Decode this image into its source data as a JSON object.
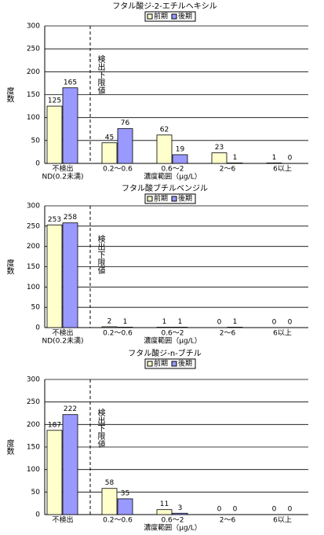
{
  "chart_data": [
    {
      "type": "bar",
      "title": "フタル酸ジ-2-エチルヘキシル",
      "ylabel": "度数",
      "xlabel": "濃度範囲（μg/L）",
      "annotation": "検出下限値",
      "categories": [
        "不検出",
        "0.2～0.6",
        "0.6～2",
        "2～6",
        "6以上"
      ],
      "category_note": "ND(0.2未満)",
      "series": [
        {
          "name": "前期",
          "color": "#ffffcc",
          "values": [
            125,
            45,
            62,
            23,
            1
          ]
        },
        {
          "name": "後期",
          "color": "#9999ff",
          "values": [
            165,
            76,
            19,
            1,
            0
          ]
        }
      ],
      "ylim": [
        0,
        300
      ],
      "yticks": [
        0,
        50,
        100,
        150,
        200,
        250,
        300
      ],
      "grid": true
    },
    {
      "type": "bar",
      "title": "フタル酸ブチルベンジル",
      "ylabel": "度数",
      "xlabel": "濃度範囲（μg/L）",
      "annotation": "検出下限値",
      "categories": [
        "不検出",
        "0.2～0.6",
        "0.6～2",
        "2～6",
        "6以上"
      ],
      "category_note": "ND(0.2未満)",
      "series": [
        {
          "name": "前期",
          "color": "#ffffcc",
          "values": [
            253,
            2,
            1,
            0,
            0
          ]
        },
        {
          "name": "後期",
          "color": "#9999ff",
          "values": [
            258,
            1,
            1,
            1,
            0
          ]
        }
      ],
      "ylim": [
        0,
        300
      ],
      "yticks": [
        0,
        50,
        100,
        150,
        200,
        250,
        300
      ],
      "grid": true
    },
    {
      "type": "bar",
      "title": "フタル酸ジ-n-ブチル",
      "ylabel": "度数",
      "xlabel": "濃度範囲（μg/L）",
      "annotation": "検出下限値",
      "categories": [
        "不検出",
        "0.2～0.6",
        "0.6～2",
        "2～6",
        "6以上"
      ],
      "series": [
        {
          "name": "前期",
          "color": "#ffffcc",
          "values": [
            187,
            58,
            11,
            0,
            0
          ]
        },
        {
          "name": "後期",
          "color": "#9999ff",
          "values": [
            222,
            35,
            3,
            0,
            0
          ]
        }
      ],
      "ylim": [
        0,
        300
      ],
      "yticks": [
        0,
        50,
        100,
        150,
        200,
        250,
        300
      ],
      "grid": true
    }
  ]
}
